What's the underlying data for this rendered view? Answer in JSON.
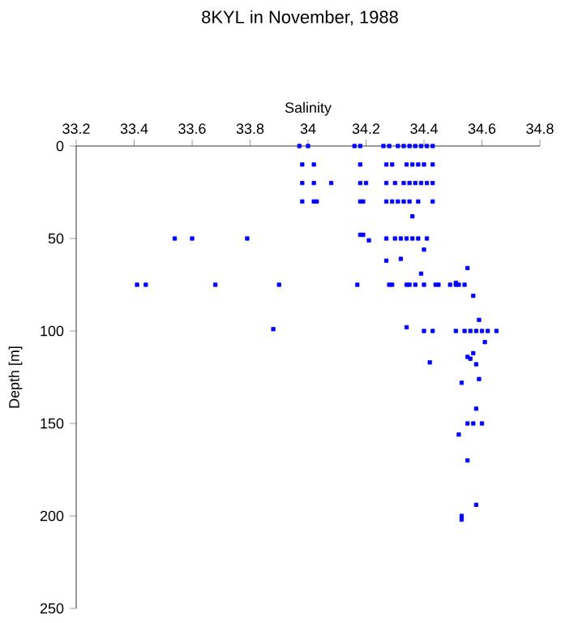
{
  "chart_data": {
    "type": "scatter",
    "title": "8KYL in November, 1988",
    "xlabel": "Salinity",
    "ylabel": "Depth [m]",
    "color": "#0000ff",
    "marker": "square",
    "xlim": [
      33.2,
      34.8
    ],
    "xticks": [
      33.2,
      33.4,
      33.6,
      33.8,
      34,
      34.2,
      34.4,
      34.6,
      34.8
    ],
    "ylim": [
      250,
      0
    ],
    "yticks": [
      0,
      50,
      100,
      150,
      200,
      250
    ],
    "x": [
      33.97,
      34.0,
      34.16,
      34.18,
      34.26,
      34.28,
      34.31,
      34.33,
      34.35,
      34.37,
      34.39,
      34.41,
      34.43,
      33.98,
      34.02,
      34.18,
      34.27,
      34.29,
      34.34,
      34.36,
      34.38,
      34.4,
      34.43,
      33.98,
      34.02,
      34.08,
      34.18,
      34.2,
      34.27,
      34.3,
      34.33,
      34.35,
      34.37,
      34.39,
      34.41,
      34.43,
      33.98,
      34.02,
      34.03,
      34.18,
      34.19,
      34.27,
      34.29,
      34.31,
      34.33,
      34.35,
      34.38,
      34.43,
      34.36,
      33.54,
      33.6,
      33.79,
      34.18,
      34.19,
      34.21,
      34.27,
      34.3,
      34.32,
      34.34,
      34.36,
      34.38,
      34.41,
      34.4,
      34.27,
      34.32,
      34.39,
      34.55,
      33.41,
      33.44,
      33.68,
      33.9,
      34.17,
      34.28,
      34.29,
      34.34,
      34.35,
      34.37,
      34.4,
      34.44,
      34.45,
      34.49,
      34.51,
      34.52,
      34.54,
      34.51,
      34.57,
      34.59,
      33.88,
      34.34,
      34.4,
      34.43,
      34.51,
      34.54,
      34.56,
      34.58,
      34.6,
      34.62,
      34.65,
      34.61,
      34.42,
      34.57,
      34.55,
      34.56,
      34.58,
      34.59,
      34.53,
      34.58,
      34.55,
      34.57,
      34.6,
      34.52,
      34.55,
      34.58,
      34.53,
      34.53
    ],
    "values": [
      0,
      0,
      0,
      0,
      0,
      0,
      0,
      0,
      0,
      0,
      0,
      0,
      0,
      10,
      10,
      10,
      10,
      10,
      10,
      10,
      10,
      10,
      10,
      20,
      20,
      20,
      20,
      20,
      20,
      20,
      20,
      20,
      20,
      20,
      20,
      20,
      30,
      30,
      30,
      30,
      30,
      30,
      30,
      30,
      30,
      30,
      30,
      30,
      38,
      50,
      50,
      50,
      48,
      48,
      51,
      50,
      50,
      50,
      50,
      50,
      50,
      50,
      56,
      62,
      61,
      69,
      66,
      75,
      75,
      75,
      75,
      75,
      75,
      75,
      75,
      75,
      75,
      75,
      75,
      75,
      75,
      75,
      75,
      75,
      74,
      81,
      94,
      99,
      98,
      100,
      100,
      100,
      100,
      100,
      100,
      100,
      100,
      100,
      106,
      117,
      112,
      114,
      115,
      118,
      126,
      128,
      142,
      150,
      150,
      150,
      156,
      170,
      194,
      200,
      202
    ]
  }
}
